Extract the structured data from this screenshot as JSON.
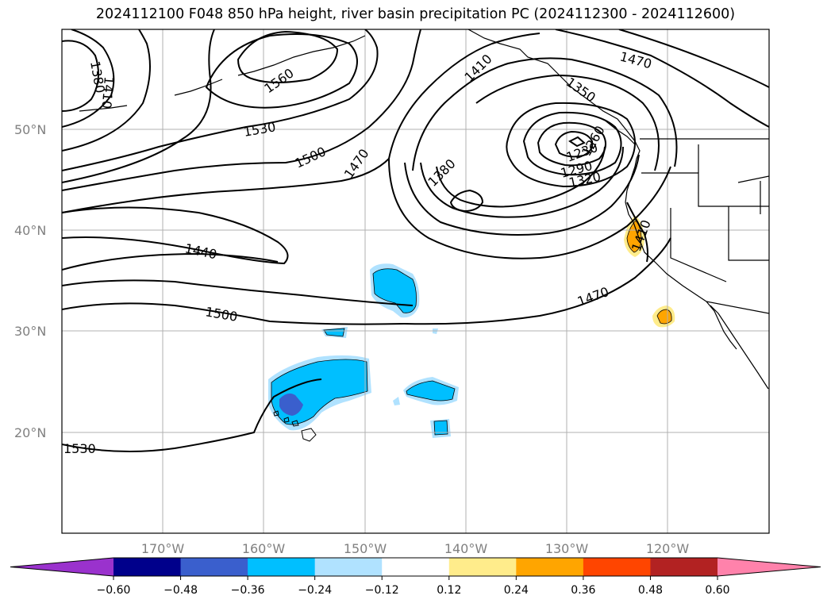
{
  "title": "2024112100 F048 850 hPa height, river basin precipitation PC (2024112300 - 2024112600)",
  "map": {
    "lon_labels": [
      "170°W",
      "160°W",
      "150°W",
      "140°W",
      "130°W",
      "120°W"
    ],
    "lat_labels": [
      "50°N",
      "40°N",
      "30°N",
      "20°N"
    ],
    "gridlines": true,
    "contour_labels": [
      "1380",
      "1410",
      "1560",
      "1530",
      "1500",
      "1470",
      "1440",
      "1500",
      "1530",
      "1410",
      "1470",
      "1350",
      "1380",
      "1230",
      "1260",
      "1290",
      "1320",
      "1410",
      "1470",
      "1470"
    ]
  },
  "colorbar": {
    "ticks": [
      "−0.60",
      "−0.48",
      "−0.36",
      "−0.24",
      "−0.12",
      "0.12",
      "0.24",
      "0.36",
      "0.48",
      "0.60"
    ],
    "colors": [
      "#9a32cd",
      "#00008b",
      "#3a5fcd",
      "#00bfff",
      "#b0e2ff",
      "#ffffff",
      "#ffec8b",
      "#ffa500",
      "#ff4500",
      "#b22222",
      "#ff82ab"
    ]
  }
}
